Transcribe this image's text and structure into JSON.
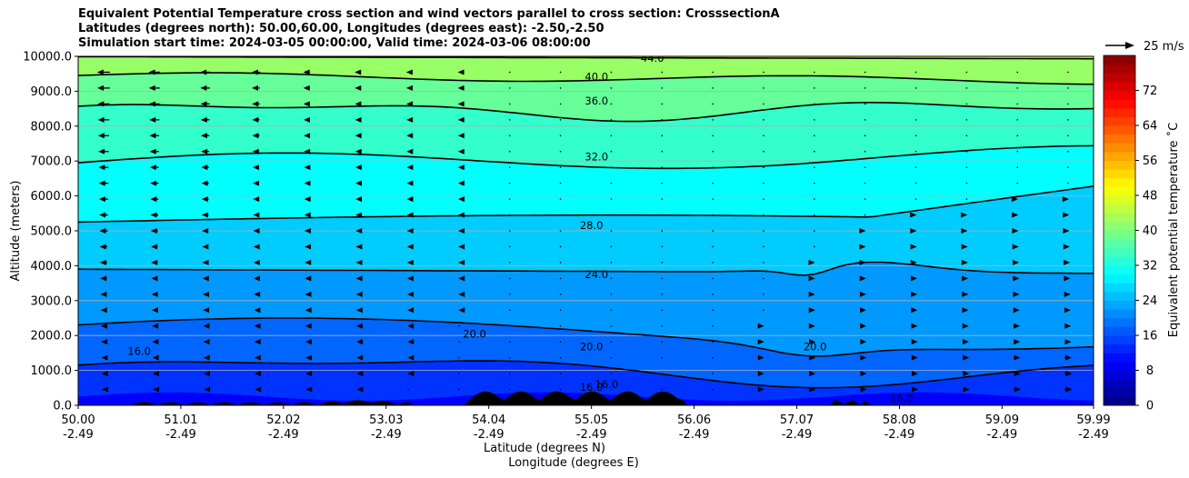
{
  "chart_data": {
    "type": "contour",
    "title_lines": [
      "Equivalent Potential Temperature cross section and wind vectors parallel to cross section: CrosssectionA",
      "Latitudes (degrees north): 50.00,60.00, Longitudes (degrees east): -2.50,-2.50",
      "Simulation start time: 2024-03-05 00:00:00, Valid time: 2024-03-06 08:00:00"
    ],
    "ylabel": "Altitude (meters)",
    "xlabel_lat": "Latitude (degrees N)",
    "xlabel_lon": "Longitude (degrees E)",
    "ylim": [
      0,
      10000
    ],
    "y_ticks": [
      "0.0",
      "1000.0",
      "2000.0",
      "3000.0",
      "4000.0",
      "5000.0",
      "6000.0",
      "7000.0",
      "8000.0",
      "9000.0",
      "10000.0"
    ],
    "x_ticks_lat": [
      "50.00",
      "51.01",
      "52.02",
      "53.03",
      "54.04",
      "55.05",
      "56.06",
      "57.07",
      "58.08",
      "59.09",
      "59.99"
    ],
    "x_ticks_lon": [
      "-2.49",
      "-2.49",
      "-2.49",
      "-2.49",
      "-2.49",
      "-2.49",
      "-2.49",
      "-2.49",
      "-2.49",
      "-2.49",
      "-2.49"
    ],
    "xlim": [
      50.0,
      59.99
    ],
    "grid": "horizontal",
    "colorbar": {
      "label": "Equivalent potential temperature ˚C",
      "range": [
        0,
        80
      ],
      "ticks": [
        "0",
        "8",
        "16",
        "24",
        "32",
        "40",
        "48",
        "56",
        "64",
        "72"
      ],
      "colormap": "jet"
    },
    "quiver_key": {
      "label": "25 m/s",
      "value": 25
    },
    "contour_labels": [
      {
        "text": "44.0",
        "lat": 55.65,
        "alt": 9950
      },
      {
        "text": "40.0",
        "lat": 55.1,
        "alt": 9420
      },
      {
        "text": "36.0",
        "lat": 55.1,
        "alt": 8720
      },
      {
        "text": "32.0",
        "lat": 55.1,
        "alt": 7120
      },
      {
        "text": "28.0",
        "lat": 55.05,
        "alt": 5150
      },
      {
        "text": "24.0",
        "lat": 55.1,
        "alt": 3750
      },
      {
        "text": "20.0",
        "lat": 55.05,
        "alt": 1680
      },
      {
        "text": "20.0",
        "lat": 57.25,
        "alt": 1680
      },
      {
        "text": "20.0",
        "lat": 53.9,
        "alt": 2050
      },
      {
        "text": "16.0",
        "lat": 50.6,
        "alt": 1550
      },
      {
        "text": "16.0",
        "lat": 55.05,
        "alt": 520
      },
      {
        "text": "16.0",
        "lat": 55.2,
        "alt": 600
      },
      {
        "text": "16.0",
        "lat": 58.1,
        "alt": 200
      }
    ],
    "theta_e_levels": [
      {
        "value": 16,
        "approx_alt_m": 1000
      },
      {
        "value": 20,
        "approx_alt_m": 2000
      },
      {
        "value": 24,
        "approx_alt_m": 3900
      },
      {
        "value": 28,
        "approx_alt_m": 5400
      },
      {
        "value": 32,
        "approx_alt_m": 7000
      },
      {
        "value": 36,
        "approx_alt_m": 8500
      },
      {
        "value": 40,
        "approx_alt_m": 9500
      },
      {
        "value": 44,
        "approx_alt_m": 10000
      }
    ]
  }
}
